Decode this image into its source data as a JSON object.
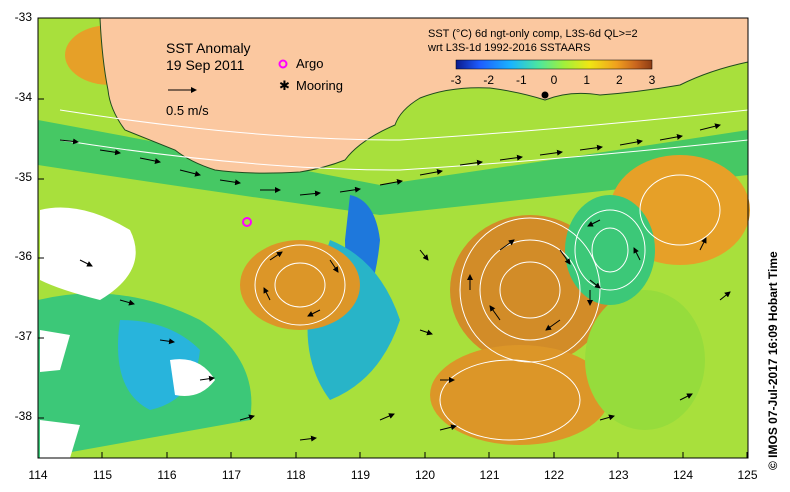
{
  "map": {
    "title": "SST Anomaly",
    "date": "19 Sep 2011",
    "scale_arrow_label": "0.5 m/s",
    "legend_items": [
      {
        "name": "Argo",
        "color": "#ff00ff"
      },
      {
        "name": "Mooring",
        "color": "#000000"
      }
    ],
    "colorbar": {
      "title_line1": "SST (°C) 6d ngt-only comp, L3S-6d QL>=2",
      "title_line2": "wrt L3S-1d 1992-2016 SSTAARS",
      "ticks": [
        "-3",
        "-2",
        "-1",
        "0",
        "1",
        "2",
        "3"
      ],
      "colors": [
        "#0a1a8c",
        "#1e5cff",
        "#19b4ff",
        "#4be6a0",
        "#a0f03c",
        "#f0e614",
        "#f0a01e",
        "#c8641e",
        "#8c3c14"
      ]
    },
    "y_axis_labels": [
      "-33",
      "-34",
      "-35",
      "-36",
      "-37",
      "-38"
    ],
    "x_axis_labels": [
      "114",
      "115",
      "116",
      "117",
      "118",
      "119",
      "120",
      "121",
      "122",
      "123",
      "124",
      "125"
    ],
    "credit": "©  IMOS 07-Jul-2017 16:09 Hobart Time",
    "colors": {
      "land": "#fbc8a0",
      "ocean_warm": "#e6961e",
      "ocean_mid": "#c8e628",
      "ocean_green": "#5ad25a",
      "ocean_cool": "#28b4dc"
    }
  }
}
